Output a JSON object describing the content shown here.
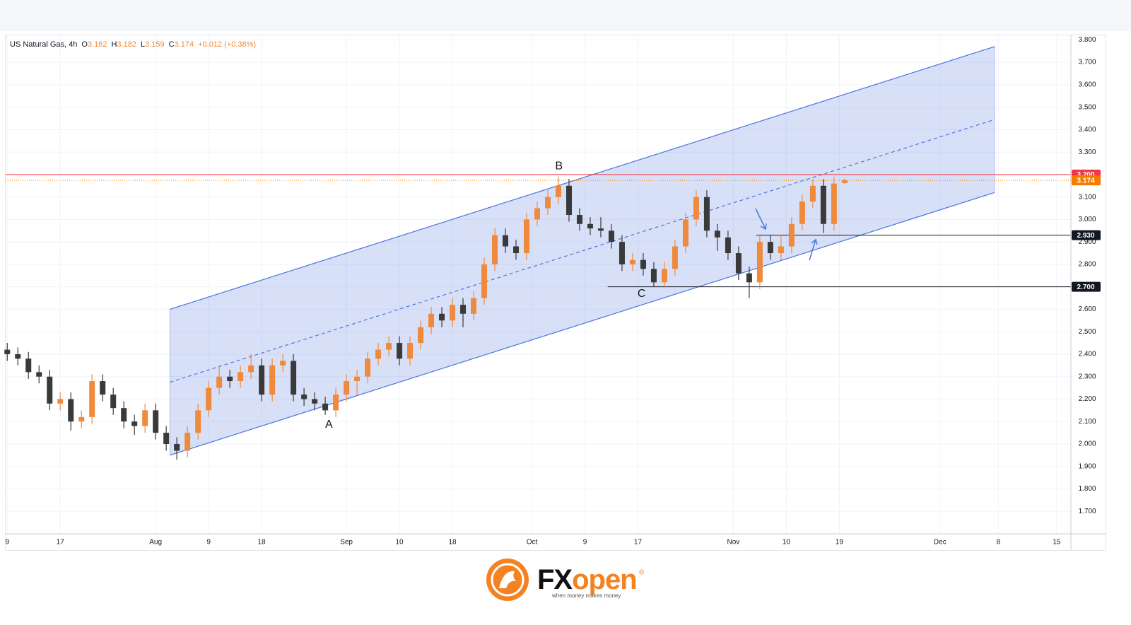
{
  "chart_data": {
    "type": "candlestick",
    "title": "US Natural Gas, 4h",
    "ohlc_prefixes": {
      "open": "O",
      "high": "H",
      "low": "L",
      "close": "C"
    },
    "change": "+0.012 (+0.38%)",
    "x": [
      0,
      2,
      4,
      6,
      8,
      10,
      12,
      14,
      16,
      18,
      20,
      22,
      24,
      26,
      28,
      30,
      32,
      34,
      36,
      38,
      40,
      42,
      44,
      46,
      48,
      50,
      52,
      54,
      56,
      58,
      60,
      62,
      64,
      66,
      68,
      70,
      72,
      74,
      76,
      78,
      80,
      82,
      84,
      86,
      88,
      90,
      92,
      94,
      96,
      98,
      100,
      102,
      104,
      106,
      108,
      110,
      112,
      114,
      116,
      118,
      120,
      122,
      124,
      126,
      128,
      130,
      132,
      134,
      136,
      138,
      140,
      142,
      144,
      146,
      148,
      150,
      152,
      154,
      156,
      158
    ],
    "open": [
      2.42,
      2.4,
      2.38,
      2.32,
      2.3,
      2.18,
      2.2,
      2.1,
      2.12,
      2.28,
      2.22,
      2.16,
      2.1,
      2.08,
      2.15,
      2.05,
      2.0,
      1.97,
      2.05,
      2.15,
      2.25,
      2.3,
      2.28,
      2.32,
      2.35,
      2.22,
      2.35,
      2.37,
      2.22,
      2.2,
      2.18,
      2.15,
      2.22,
      2.28,
      2.3,
      2.38,
      2.42,
      2.45,
      2.38,
      2.45,
      2.52,
      2.58,
      2.55,
      2.62,
      2.58,
      2.65,
      2.8,
      2.93,
      2.88,
      2.85,
      3.0,
      3.05,
      3.1,
      3.15,
      3.02,
      2.98,
      2.96,
      2.95,
      2.9,
      2.8,
      2.82,
      2.78,
      2.72,
      2.78,
      2.88,
      3.0,
      3.1,
      2.95,
      2.92,
      2.85,
      2.76,
      2.72,
      2.9,
      2.85,
      2.88,
      2.98,
      3.08,
      3.15,
      2.98,
      3.162
    ],
    "high": [
      2.45,
      2.43,
      2.41,
      2.35,
      2.33,
      2.23,
      2.23,
      2.15,
      2.31,
      2.31,
      2.25,
      2.19,
      2.13,
      2.18,
      2.18,
      2.08,
      2.03,
      2.08,
      2.18,
      2.28,
      2.35,
      2.33,
      2.35,
      2.4,
      2.38,
      2.38,
      2.4,
      2.4,
      2.25,
      2.23,
      2.21,
      2.25,
      2.31,
      2.33,
      2.41,
      2.45,
      2.48,
      2.48,
      2.48,
      2.55,
      2.61,
      2.61,
      2.65,
      2.65,
      2.68,
      2.83,
      2.96,
      2.96,
      2.91,
      3.03,
      3.08,
      3.13,
      3.19,
      3.18,
      3.05,
      3.01,
      3.01,
      2.98,
      2.93,
      2.85,
      2.85,
      2.81,
      2.81,
      2.91,
      3.03,
      3.13,
      3.13,
      2.98,
      2.95,
      2.88,
      2.79,
      2.93,
      2.93,
      2.93,
      3.01,
      3.11,
      3.18,
      3.18,
      3.19,
      3.182
    ],
    "low": [
      2.37,
      2.35,
      2.29,
      2.27,
      2.15,
      2.15,
      2.06,
      2.07,
      2.09,
      2.19,
      2.13,
      2.07,
      2.04,
      2.05,
      2.02,
      1.97,
      1.93,
      1.94,
      2.02,
      2.12,
      2.22,
      2.25,
      2.25,
      2.29,
      2.19,
      2.19,
      2.32,
      2.19,
      2.17,
      2.15,
      2.13,
      2.12,
      2.19,
      2.22,
      2.27,
      2.35,
      2.39,
      2.35,
      2.35,
      2.42,
      2.49,
      2.52,
      2.52,
      2.52,
      2.55,
      2.62,
      2.77,
      2.85,
      2.82,
      2.82,
      2.97,
      3.02,
      3.07,
      2.99,
      2.95,
      2.93,
      2.92,
      2.87,
      2.77,
      2.77,
      2.75,
      2.7,
      2.7,
      2.75,
      2.85,
      2.97,
      2.92,
      2.86,
      2.82,
      2.73,
      2.65,
      2.69,
      2.82,
      2.82,
      2.85,
      2.95,
      3.05,
      2.94,
      2.95,
      3.159
    ],
    "close": [
      2.4,
      2.38,
      2.32,
      2.3,
      2.18,
      2.2,
      2.1,
      2.12,
      2.28,
      2.22,
      2.16,
      2.1,
      2.08,
      2.15,
      2.05,
      2.0,
      1.97,
      2.05,
      2.15,
      2.25,
      2.3,
      2.28,
      2.32,
      2.35,
      2.22,
      2.35,
      2.37,
      2.22,
      2.2,
      2.18,
      2.15,
      2.22,
      2.28,
      2.3,
      2.38,
      2.42,
      2.45,
      2.38,
      2.45,
      2.52,
      2.58,
      2.55,
      2.62,
      2.58,
      2.65,
      2.8,
      2.93,
      2.88,
      2.85,
      3.0,
      3.05,
      3.1,
      3.15,
      3.02,
      2.98,
      2.96,
      2.95,
      2.9,
      2.8,
      2.82,
      2.78,
      2.72,
      2.78,
      2.88,
      3.0,
      3.1,
      2.95,
      2.92,
      2.85,
      2.76,
      2.72,
      2.9,
      2.85,
      2.88,
      2.98,
      3.08,
      3.15,
      2.98,
      3.16,
      3.174
    ],
    "up_color": "#ef8a3c",
    "down_color": "#3a3a3a",
    "last_price_color": "#f57c00",
    "xlim": [
      -0.3,
      200.7
    ],
    "xticks": [
      {
        "value": 0,
        "label": "9"
      },
      {
        "value": 10,
        "label": "17"
      },
      {
        "value": 28,
        "label": "Aug"
      },
      {
        "value": 38,
        "label": "9"
      },
      {
        "value": 48,
        "label": "18"
      },
      {
        "value": 64,
        "label": "Sep"
      },
      {
        "value": 74,
        "label": "10"
      },
      {
        "value": 84,
        "label": "18"
      },
      {
        "value": 99,
        "label": "Oct"
      },
      {
        "value": 109,
        "label": "9"
      },
      {
        "value": 119,
        "label": "17"
      },
      {
        "value": 137,
        "label": "Nov"
      },
      {
        "value": 147,
        "label": "10"
      },
      {
        "value": 157,
        "label": "19"
      },
      {
        "value": 176,
        "label": "Dec"
      },
      {
        "value": 187,
        "label": "8"
      },
      {
        "value": 198,
        "label": "15"
      }
    ],
    "ylim": [
      1.6,
      3.82
    ],
    "yticks": [
      {
        "value": 1.7,
        "label": "1.700"
      },
      {
        "value": 1.8,
        "label": "1.800"
      },
      {
        "value": 1.9,
        "label": "1.900"
      },
      {
        "value": 2.0,
        "label": "2.000"
      },
      {
        "value": 2.1,
        "label": "2.100"
      },
      {
        "value": 2.2,
        "label": "2.200"
      },
      {
        "value": 2.3,
        "label": "2.300"
      },
      {
        "value": 2.4,
        "label": "2.400"
      },
      {
        "value": 2.5,
        "label": "2.500"
      },
      {
        "value": 2.6,
        "label": "2.600"
      },
      {
        "value": 2.7,
        "label": "2.700"
      },
      {
        "value": 2.8,
        "label": "2.800"
      },
      {
        "value": 2.9,
        "label": "2.900"
      },
      {
        "value": 3.0,
        "label": "3.000"
      },
      {
        "value": 3.1,
        "label": "3.100"
      },
      {
        "value": 3.2,
        "label": "3.200"
      },
      {
        "value": 3.3,
        "label": "3.300"
      },
      {
        "value": 3.4,
        "label": "3.400"
      },
      {
        "value": 3.5,
        "label": "3.500"
      },
      {
        "value": 3.6,
        "label": "3.600"
      },
      {
        "value": 3.7,
        "label": "3.700"
      },
      {
        "value": 3.8,
        "label": "3.800"
      }
    ],
    "grid": true,
    "channel": {
      "x": [
        30.7,
        186.3
      ],
      "upper": [
        2.6,
        3.77
      ],
      "middle": [
        2.275,
        3.445
      ],
      "lower": [
        1.95,
        3.12
      ],
      "color": "#4c74e0"
    },
    "levels": [
      {
        "value": 3.2,
        "label": "3.200",
        "color": "#f23645"
      },
      {
        "value": 2.93,
        "label": "2.930",
        "color": "#131722",
        "from": 141.3
      },
      {
        "value": 2.7,
        "label": "2.700",
        "color": "#131722",
        "from": 113.3
      }
    ],
    "annotations": [
      {
        "text": "A",
        "x": 60.7,
        "y": 2.086
      },
      {
        "text": "B",
        "x": 104.1,
        "y": 3.237
      },
      {
        "text": "C",
        "x": 119.7,
        "y": 2.668
      }
    ]
  },
  "footer": {
    "brand_fx": "FX",
    "brand_open": "open",
    "registered": "®",
    "tagline": "when money makes money"
  }
}
